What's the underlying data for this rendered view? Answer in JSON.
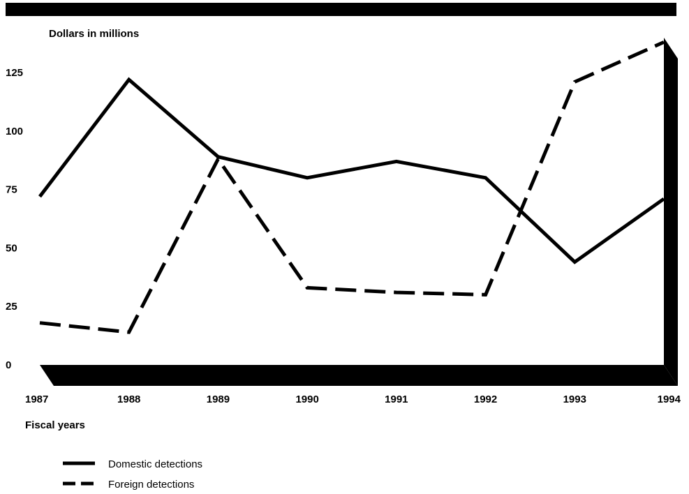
{
  "chart_data": {
    "type": "line",
    "ylabel": "Dollars in millions",
    "xlabel": "Fiscal years",
    "categories": [
      "1987",
      "1988",
      "1989",
      "1990",
      "1991",
      "1992",
      "1993",
      "1994"
    ],
    "yticks": [
      0,
      25,
      50,
      75,
      100,
      125
    ],
    "ylim": [
      0,
      125
    ],
    "grid": false,
    "legend_position": "bottom-left",
    "series": [
      {
        "name": "Domestic detections",
        "style": "solid",
        "color": "#000000",
        "values": [
          72,
          122,
          89,
          80,
          87,
          80,
          44,
          71
        ]
      },
      {
        "name": "Foreign detections",
        "style": "dashed",
        "color": "#000000",
        "values": [
          18,
          14,
          88,
          33,
          31,
          30,
          121,
          138
        ]
      }
    ]
  }
}
